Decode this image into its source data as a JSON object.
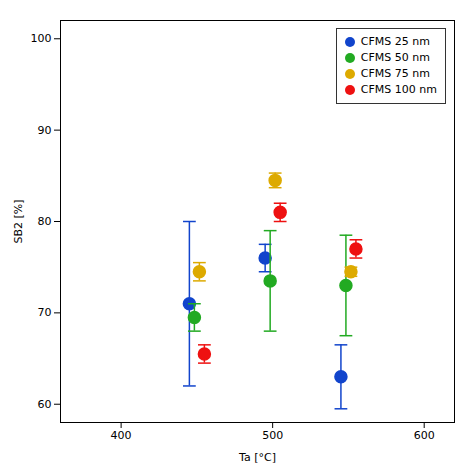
{
  "chart_data": {
    "type": "scatter",
    "xlabel": "Ta [°C]",
    "ylabel": "SB2 [%]",
    "x": [
      450,
      500,
      550
    ],
    "series": [
      {
        "name": "CFMS 25 nm",
        "color": "#1144cc",
        "values": [
          71.0,
          76.0,
          63.0
        ],
        "yerr": [
          9.0,
          1.5,
          3.5
        ]
      },
      {
        "name": "CFMS 50 nm",
        "color": "#22aa22",
        "values": [
          69.5,
          73.5,
          73.0
        ],
        "yerr": [
          1.5,
          5.5,
          5.5
        ]
      },
      {
        "name": "CFMS 75 nm",
        "color": "#ddaa00",
        "values": [
          74.5,
          84.5,
          74.5
        ],
        "yerr": [
          1.0,
          0.8,
          0.5
        ]
      },
      {
        "name": "CFMS 100 nm",
        "color": "#ee1111",
        "values": [
          65.5,
          81.0,
          77.0
        ],
        "yerr": [
          1.0,
          1.0,
          1.0
        ]
      }
    ],
    "xlim": [
      360,
      620
    ],
    "ylim": [
      58,
      102
    ],
    "xticks": [
      400,
      500,
      600
    ],
    "yticks": [
      60,
      70,
      80,
      90,
      100
    ],
    "grid": false,
    "legend": "upper right",
    "marker": "circle"
  }
}
